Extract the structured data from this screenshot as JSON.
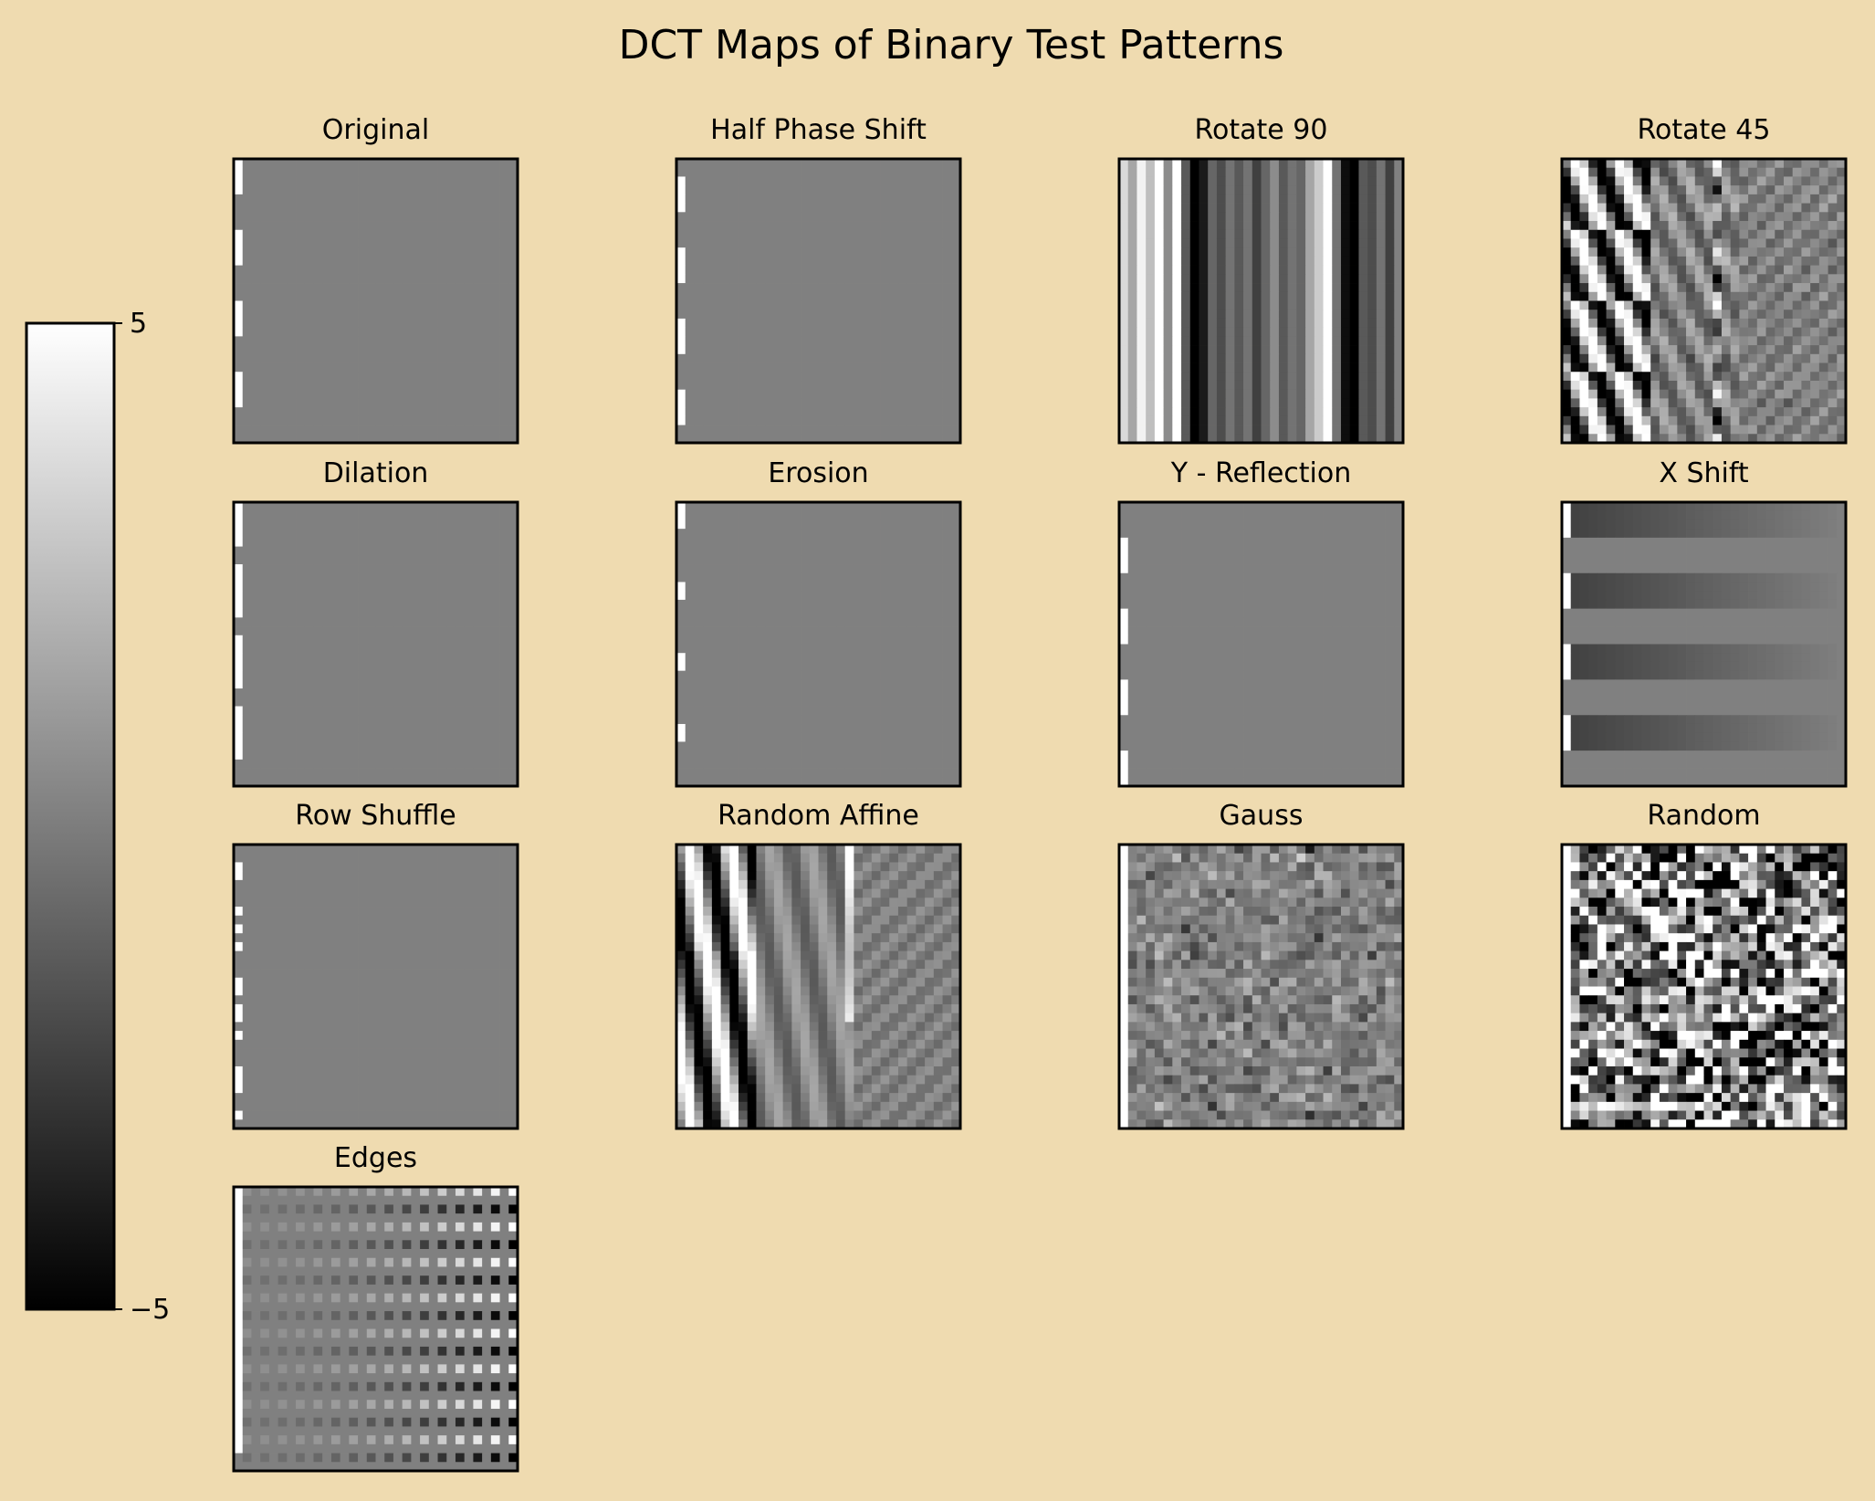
{
  "figure": {
    "background": "#efdbb0",
    "title": "DCT Maps of Binary Test Patterns"
  },
  "colorbar": {
    "cmap": "gray",
    "min": -5,
    "max": 5,
    "tick_labels": [
      "5",
      "−5"
    ]
  },
  "chart_data": [
    {
      "type": "heatmap",
      "title": "Original",
      "grid": [
        32,
        32
      ],
      "pattern": "left_dashes",
      "dash_rows": [
        [
          0,
          3
        ],
        [
          8,
          11
        ],
        [
          16,
          19
        ],
        [
          24,
          27
        ]
      ]
    },
    {
      "type": "heatmap",
      "title": "Half Phase Shift",
      "grid": [
        32,
        32
      ],
      "pattern": "left_dashes",
      "dash_rows": [
        [
          2,
          5
        ],
        [
          10,
          13
        ],
        [
          18,
          21
        ],
        [
          26,
          29
        ]
      ]
    },
    {
      "type": "heatmap",
      "title": "Rotate 90",
      "grid": [
        32,
        32
      ],
      "pattern": "vertical_stripes"
    },
    {
      "type": "heatmap",
      "title": "Rotate 45",
      "grid": [
        32,
        32
      ],
      "pattern": "diagonal_bands"
    },
    {
      "type": "heatmap",
      "title": "Dilation",
      "grid": [
        32,
        32
      ],
      "pattern": "left_dashes",
      "dash_rows": [
        [
          0,
          4
        ],
        [
          7,
          12
        ],
        [
          15,
          20
        ],
        [
          23,
          28
        ]
      ]
    },
    {
      "type": "heatmap",
      "title": "Erosion",
      "grid": [
        32,
        32
      ],
      "pattern": "left_dashes",
      "dash_rows": [
        [
          0,
          2
        ],
        [
          9,
          10
        ],
        [
          17,
          18
        ],
        [
          25,
          26
        ]
      ]
    },
    {
      "type": "heatmap",
      "title": "Y - Reflection",
      "grid": [
        32,
        32
      ],
      "pattern": "left_dashes",
      "dash_rows": [
        [
          4,
          7
        ],
        [
          12,
          15
        ],
        [
          20,
          23
        ],
        [
          28,
          31
        ]
      ]
    },
    {
      "type": "heatmap",
      "title": "X Shift",
      "grid": [
        32,
        32
      ],
      "pattern": "horizontal_bands"
    },
    {
      "type": "heatmap",
      "title": "Row Shuffle",
      "grid": [
        32,
        32
      ],
      "pattern": "left_scatter",
      "dash_rows": [
        [
          2,
          3
        ],
        [
          7,
          7
        ],
        [
          9,
          9
        ],
        [
          11,
          11
        ],
        [
          15,
          16
        ],
        [
          18,
          18
        ],
        [
          19,
          19
        ],
        [
          21,
          21
        ],
        [
          25,
          27
        ],
        [
          30,
          30
        ]
      ]
    },
    {
      "type": "heatmap",
      "title": "Random Affine",
      "grid": [
        32,
        32
      ],
      "pattern": "affine_bands"
    },
    {
      "type": "heatmap",
      "title": "Gauss",
      "grid": [
        32,
        32
      ],
      "pattern": "gauss_noise"
    },
    {
      "type": "heatmap",
      "title": "Random",
      "grid": [
        32,
        32
      ],
      "pattern": "random_noise"
    },
    {
      "type": "heatmap",
      "title": "Edges",
      "grid": [
        32,
        32
      ],
      "pattern": "dot_grid"
    }
  ]
}
